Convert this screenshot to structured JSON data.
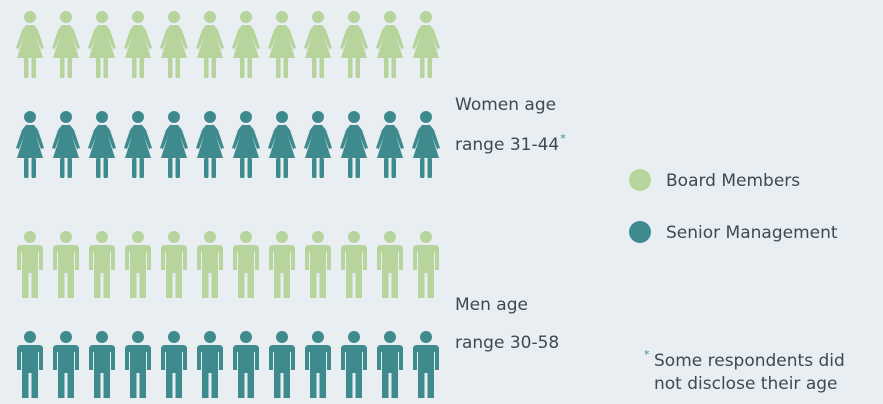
{
  "groups": [
    {
      "label_lines": [
        "Women age",
        "range 31-44"
      ],
      "footnote_marker": "*",
      "icon": "woman"
    },
    {
      "label_lines": [
        "Men age",
        "range 30-58"
      ],
      "icon": "man"
    }
  ],
  "legend": [
    {
      "name": "Board Members",
      "color": "#b7d49c"
    },
    {
      "name": "Senior Management",
      "color": "#3e8a8d"
    }
  ],
  "footnote": {
    "marker": "*",
    "lines": [
      "Some respondents did",
      "not disclose their age"
    ]
  }
}
